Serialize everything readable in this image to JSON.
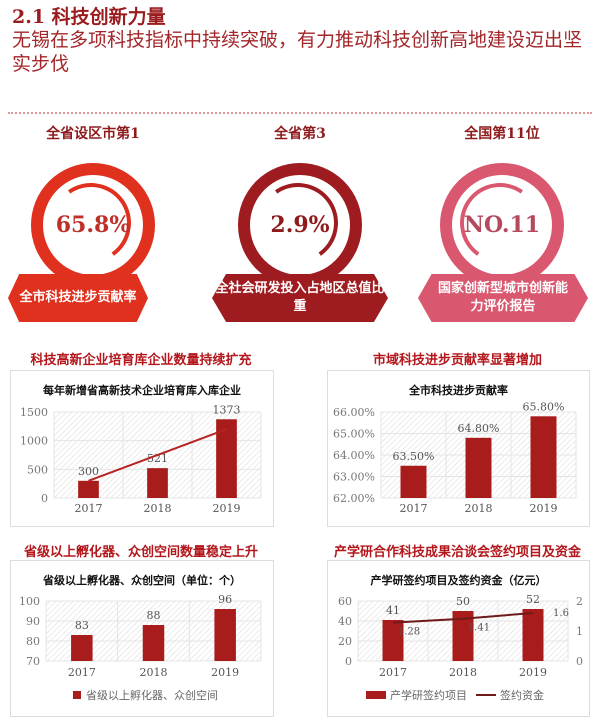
{
  "header": {
    "title": "2.1 科技创新力量",
    "subtitle": "无锡在多项科技指标中持续突破，有力推动科技创新高地建设迈出坚实步伐"
  },
  "badges": [
    {
      "rank": "全省设区市第1",
      "value": "65.8%",
      "label": "全市科技进步贡献率",
      "color": "#e0301e"
    },
    {
      "rank": "全省第3",
      "value": "2.9%",
      "label": "全社会研发投入占地区总值比重",
      "color": "#9e1b1f"
    },
    {
      "rank": "全国第11位",
      "value": "NO.11",
      "label": "国家创新型城市创新能力评价报告",
      "color": "#d9576f"
    }
  ],
  "colors": {
    "bar": "#a81c1c",
    "line": "#b82222",
    "line2": "#6e1a1a"
  },
  "chart_data": [
    {
      "type": "bar",
      "heading": "科技高新企业培育库企业数量持续扩充",
      "title": "每年新增省高新技术企业培育库入库企业",
      "categories": [
        "2017",
        "2018",
        "2019"
      ],
      "values": [
        300,
        521,
        1373
      ],
      "labels": [
        "300",
        "521",
        "1373"
      ],
      "ylim": [
        0,
        1500
      ],
      "yticks": [
        "0",
        "500",
        "1000",
        "1500"
      ],
      "trendline": [
        300,
        1200
      ]
    },
    {
      "type": "bar",
      "heading": "市域科技进步贡献率显著增加",
      "title": "全市科技进步贡献率",
      "categories": [
        "2017",
        "2018",
        "2019"
      ],
      "values": [
        63.5,
        64.8,
        65.8
      ],
      "labels": [
        "63.50%",
        "64.80%",
        "65.80%"
      ],
      "ylim": [
        62,
        66
      ],
      "yticks": [
        "62.00%",
        "63.00%",
        "64.00%",
        "65.00%",
        "66.00%"
      ]
    },
    {
      "type": "bar",
      "heading": "省级以上孵化器、众创空间数量稳定上升",
      "title": "省级以上孵化器、众创空间（单位：个）",
      "categories": [
        "2017",
        "2018",
        "2019"
      ],
      "values": [
        83,
        88,
        96
      ],
      "labels": [
        "83",
        "88",
        "96"
      ],
      "ylim": [
        70,
        100
      ],
      "yticks": [
        "70",
        "80",
        "90",
        "100"
      ],
      "legend": [
        "省级以上孵化器、众创空间"
      ]
    },
    {
      "type": "bar+line",
      "heading": "产学研合作科技成果洽谈会签约项目及资金",
      "title": "产学研签约项目及签约资金（亿元）",
      "categories": [
        "2017",
        "2018",
        "2019"
      ],
      "series": [
        {
          "name": "产学研签约项目",
          "values": [
            41,
            50,
            52
          ],
          "labels": [
            "41",
            "50",
            "52"
          ]
        },
        {
          "name": "签约资金",
          "values": [
            1.28,
            1.41,
            1.6
          ],
          "labels": [
            "1.28",
            "1.41",
            "1.6"
          ]
        }
      ],
      "ylim": [
        0,
        60
      ],
      "yticks": [
        "0",
        "20",
        "40",
        "60"
      ],
      "y2lim": [
        0,
        2
      ],
      "y2ticks": [
        "0",
        "1",
        "2"
      ],
      "legend": [
        "产学研签约项目",
        "签约资金"
      ]
    }
  ]
}
